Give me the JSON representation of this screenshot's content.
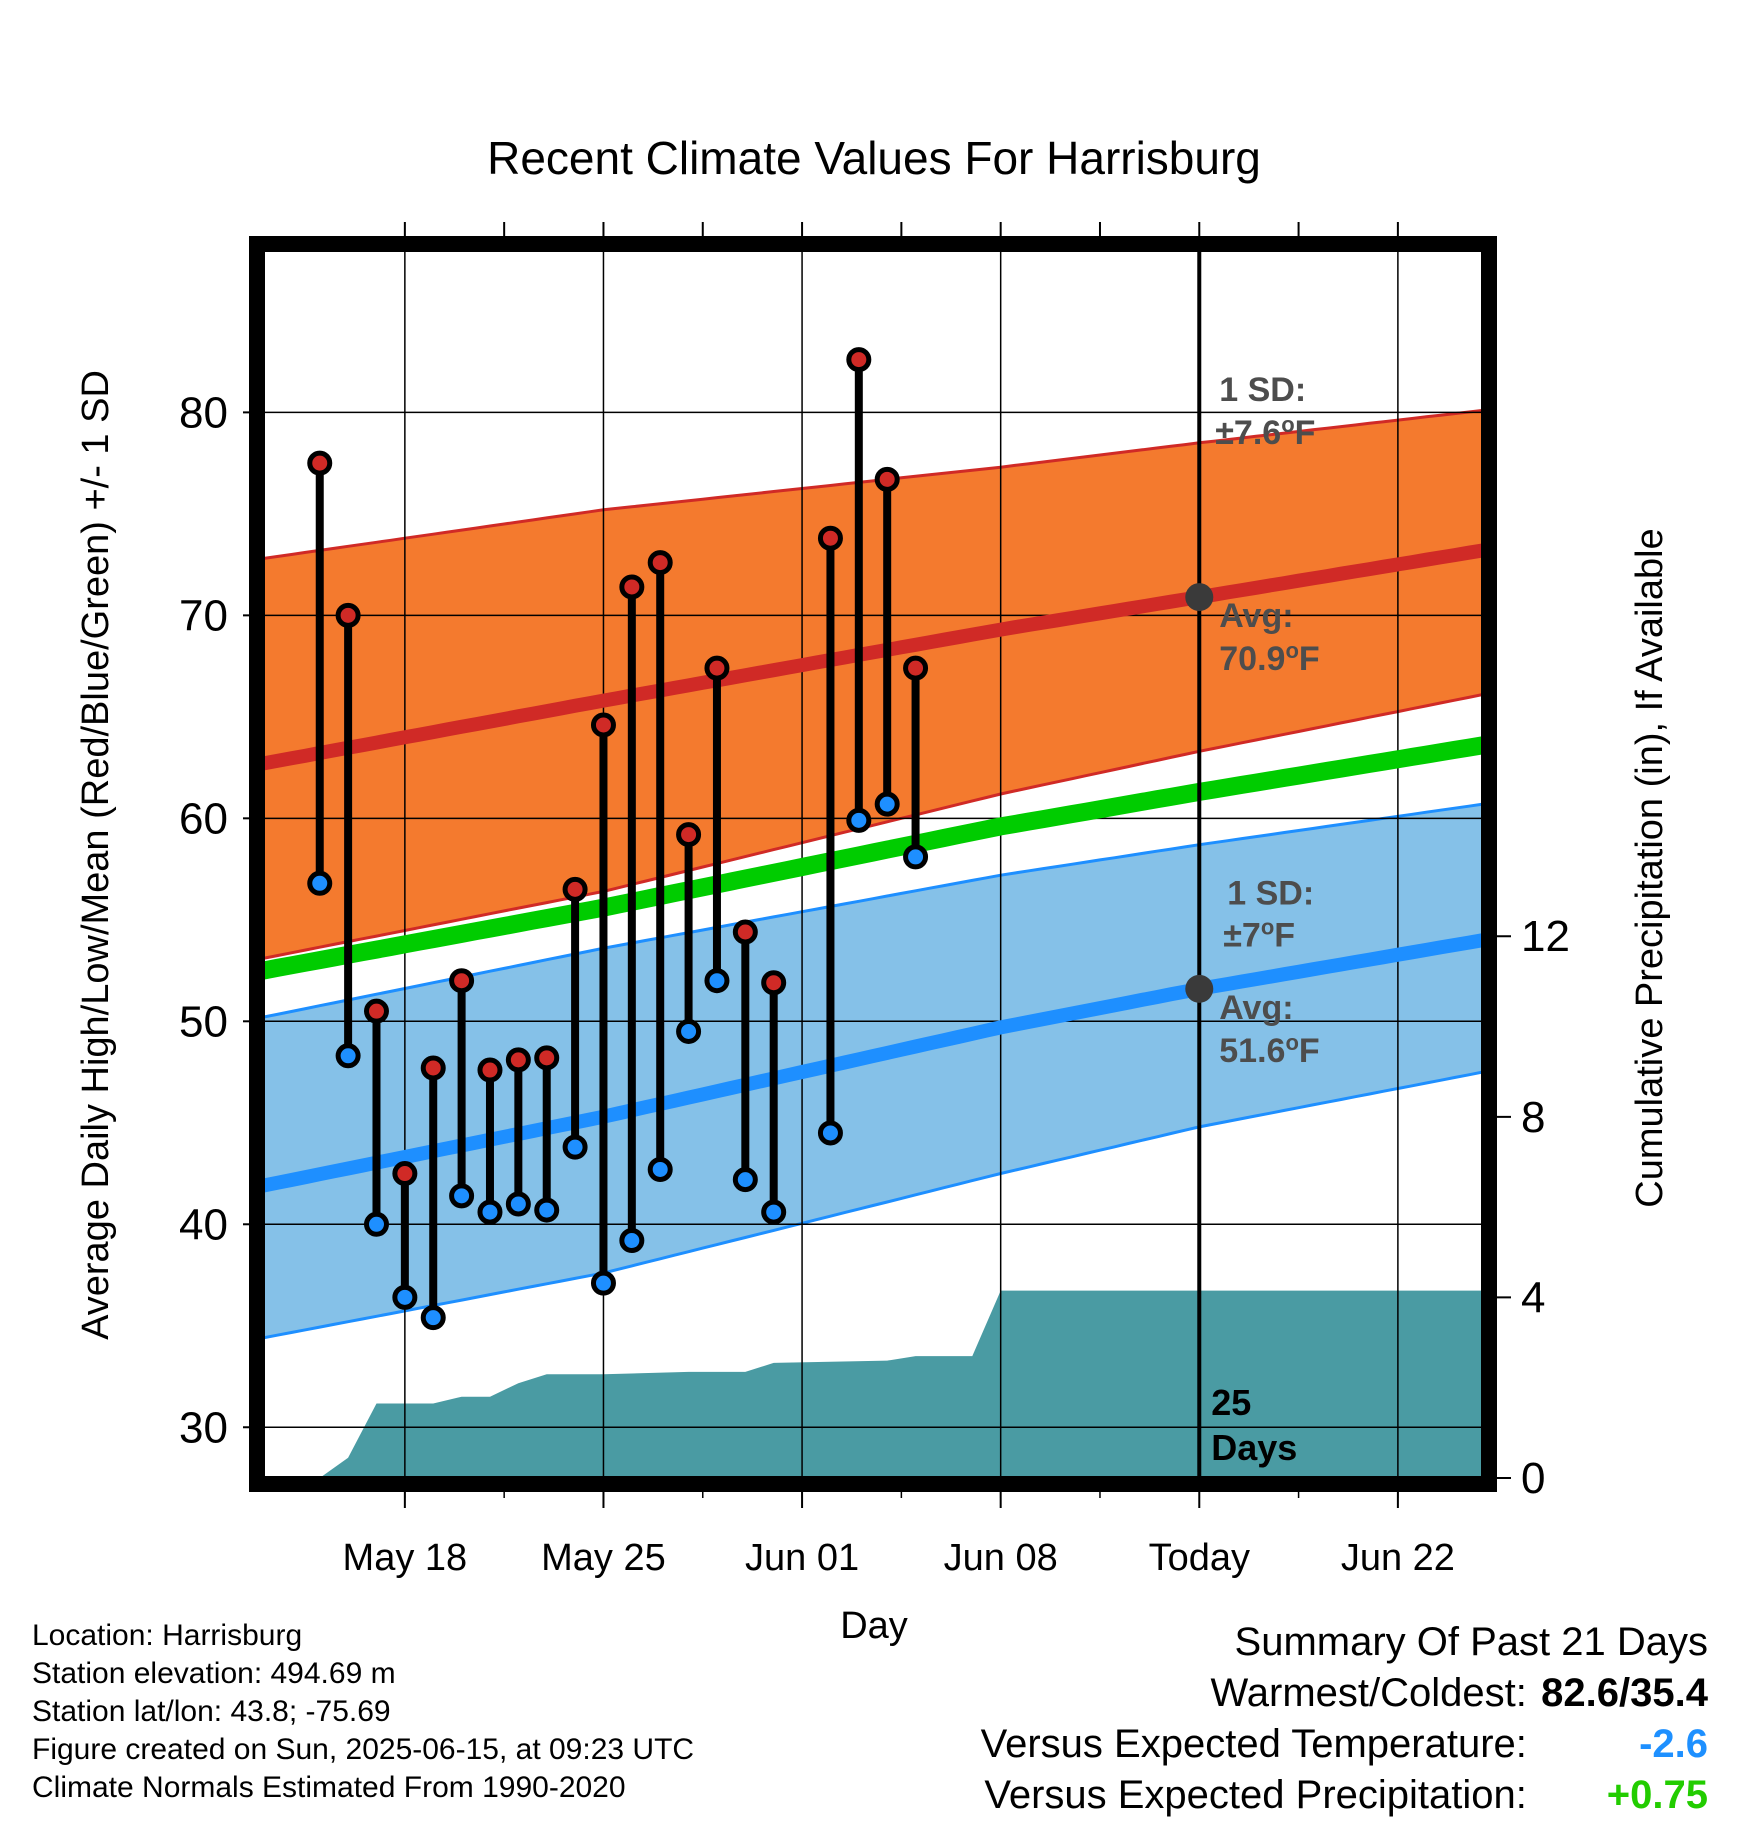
{
  "chart_data": {
    "type": "line",
    "title": "Recent Climate Values For Harrisburg",
    "xlabel": "Day",
    "ylabel": "Average Daily High/Low/Mean (Red/Blue/Green) +/- 1 SD",
    "y2label": "Cumulative Precipitation (in), If Available",
    "xlim": [
      "2025-05-13",
      "2025-06-25"
    ],
    "ylim": [
      27.5,
      88
    ],
    "y2lim": [
      0,
      27.2
    ],
    "x_ticks": [
      {
        "date": "2025-05-18",
        "label": "May 18"
      },
      {
        "date": "2025-05-25",
        "label": "May 25"
      },
      {
        "date": "2025-06-01",
        "label": "Jun 01"
      },
      {
        "date": "2025-06-08",
        "label": "Jun 08"
      },
      {
        "date": "2025-06-15",
        "label": "Today"
      },
      {
        "date": "2025-06-22",
        "label": "Jun 22"
      }
    ],
    "y_ticks": [
      30,
      40,
      50,
      60,
      70,
      80
    ],
    "y2_ticks": [
      0,
      4,
      8,
      12
    ],
    "grid": true,
    "today": "2025-06-15",
    "normal_high_band": {
      "dates": [
        "2025-05-13",
        "2025-05-25",
        "2025-06-08",
        "2025-06-15",
        "2025-06-25"
      ],
      "mean": [
        62.7,
        65.8,
        69.3,
        70.9,
        73.2
      ],
      "upper": [
        72.8,
        75.2,
        77.3,
        78.5,
        80.1
      ],
      "lower": [
        53.1,
        56.4,
        61.2,
        63.3,
        66.1
      ]
    },
    "normal_low_band": {
      "dates": [
        "2025-05-13",
        "2025-05-25",
        "2025-06-08",
        "2025-06-15",
        "2025-06-25"
      ],
      "mean": [
        41.9,
        45.3,
        49.7,
        51.6,
        54.0
      ],
      "upper": [
        50.2,
        53.6,
        57.2,
        58.7,
        60.7
      ],
      "lower": [
        34.4,
        37.6,
        42.5,
        44.8,
        47.5
      ]
    },
    "normal_mean": {
      "dates": [
        "2025-05-13",
        "2025-05-25",
        "2025-06-08",
        "2025-06-15",
        "2025-06-25"
      ],
      "values": [
        52.5,
        55.6,
        59.6,
        61.3,
        63.6
      ]
    },
    "daily_obs": [
      {
        "date": "2025-05-15",
        "high": 77.5,
        "low": 56.8
      },
      {
        "date": "2025-05-16",
        "high": 70.0,
        "low": 48.3
      },
      {
        "date": "2025-05-17",
        "high": 50.5,
        "low": 40.0
      },
      {
        "date": "2025-05-18",
        "high": 42.5,
        "low": 36.4
      },
      {
        "date": "2025-05-19",
        "high": 47.7,
        "low": 35.4
      },
      {
        "date": "2025-05-20",
        "high": 52.0,
        "low": 41.4
      },
      {
        "date": "2025-05-21",
        "high": 47.6,
        "low": 40.6
      },
      {
        "date": "2025-05-22",
        "high": 48.1,
        "low": 41.0
      },
      {
        "date": "2025-05-23",
        "high": 48.2,
        "low": 40.7
      },
      {
        "date": "2025-05-24",
        "high": 56.5,
        "low": 43.8
      },
      {
        "date": "2025-05-25",
        "high": 64.6,
        "low": 37.1
      },
      {
        "date": "2025-05-26",
        "high": 71.4,
        "low": 39.2
      },
      {
        "date": "2025-05-27",
        "high": 72.6,
        "low": 42.7
      },
      {
        "date": "2025-05-28",
        "high": 59.2,
        "low": 49.5
      },
      {
        "date": "2025-05-29",
        "high": 67.4,
        "low": 52.0
      },
      {
        "date": "2025-05-30",
        "high": 54.4,
        "low": 42.2
      },
      {
        "date": "2025-05-31",
        "high": 51.9,
        "low": 40.6
      },
      {
        "date": "2025-06-02",
        "high": 73.8,
        "low": 44.5
      },
      {
        "date": "2025-06-03",
        "high": 82.6,
        "low": 59.9
      },
      {
        "date": "2025-06-04",
        "high": 76.7,
        "low": 60.7
      },
      {
        "date": "2025-06-05",
        "high": 67.4,
        "low": 58.1
      }
    ],
    "cumulative_precipitation": {
      "dates": [
        "2025-05-14",
        "2025-05-15",
        "2025-05-16",
        "2025-05-17",
        "2025-05-19",
        "2025-05-20",
        "2025-05-21",
        "2025-05-22",
        "2025-05-23",
        "2025-05-24",
        "2025-05-25",
        "2025-05-28",
        "2025-05-30",
        "2025-05-31",
        "2025-06-04",
        "2025-06-05",
        "2025-06-07",
        "2025-06-08",
        "2025-06-25"
      ],
      "values": [
        0.0,
        0.0,
        0.45,
        1.65,
        1.65,
        1.8,
        1.8,
        2.1,
        2.3,
        2.3,
        2.3,
        2.35,
        2.35,
        2.55,
        2.6,
        2.7,
        2.7,
        4.15,
        4.15
      ]
    },
    "annotations": {
      "high_sd": "1 SD:",
      "high_sd_value": "±7.6",
      "high_avg": "Avg:",
      "high_avg_value": "70.9",
      "low_sd": "1 SD:",
      "low_sd_value": "±7",
      "low_avg": "Avg:",
      "low_avg_value": "51.6",
      "degree_unit": "o",
      "temp_unit": "F",
      "days_count": "25",
      "days_word": "Days"
    },
    "colors": {
      "high_band": "#f47a2e",
      "high_band_edge": "#d02a26",
      "high_mean": "#d02a26",
      "low_band": "#85c1e8",
      "low_band_edge": "#1e8fff",
      "low_mean": "#1e8fff",
      "normal_mean": "#00cc00",
      "precip": "#4a9ba3",
      "high_marker": "#d02a26",
      "low_marker": "#1e8fff",
      "avg_marker": "#3a3a3a",
      "annotation_text": "#4d4d4d"
    }
  },
  "station_info": {
    "location": "Location: Harrisburg",
    "elevation": "Station elevation: 494.69 m",
    "latlon": "Station lat/lon: 43.8; -75.69",
    "created": "Figure created on Sun, 2025-06-15, at 09:23 UTC",
    "normals": "Climate Normals Estimated From 1990-2020"
  },
  "summary": {
    "title": "Summary Of Past 21 Days",
    "warm_cold_label": "Warmest/Coldest:",
    "warm_cold_value": "82.6/35.4",
    "temp_label": "Versus Expected Temperature:",
    "temp_value": "-2.6",
    "prcp_label": "Versus Expected Precipitation:",
    "prcp_value": "+0.75"
  }
}
